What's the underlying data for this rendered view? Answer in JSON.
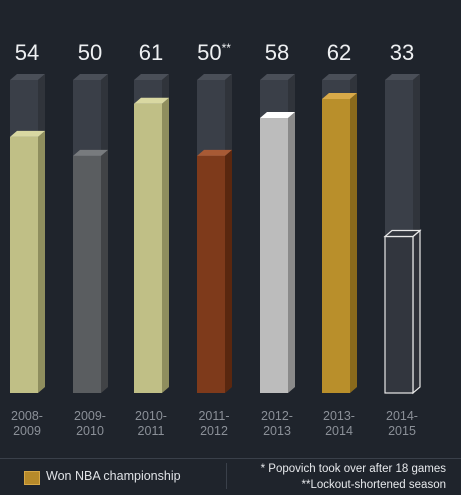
{
  "chart_data": {
    "type": "bar",
    "categories": [
      "2008-\n2009",
      "2009-\n2010",
      "2010-\n2011",
      "2011-\n2012",
      "2012-\n2013",
      "2013-\n2014",
      "2014-\n2015"
    ],
    "value_labels": [
      "54",
      "50",
      "61",
      "50**",
      "58",
      "62",
      "33"
    ],
    "values": [
      54,
      50,
      61,
      50,
      58,
      62,
      33
    ],
    "ylim": [
      0,
      66
    ],
    "grid": false,
    "colors": {
      "background": "#1f242c",
      "empty_column": "#3a3f48",
      "bars": [
        "#c0bf86",
        "#5a5d60",
        "#c0bf86",
        "#7e3a1b",
        "#bcbcbc",
        "#b98f2b",
        "#2d3138"
      ],
      "bar_tops": [
        "#d9d8a2",
        "#787b7e",
        "#d9d8a2",
        "#a85a35",
        "#ffffff",
        "#d9aa49",
        "#2d3138"
      ],
      "bar_sides": [
        "#8f8e5e",
        "#414346",
        "#8f8e5e",
        "#5a270f",
        "#8a8a8a",
        "#8a6a1c",
        "#2d3138"
      ]
    },
    "outline_bar_index": 6
  },
  "legend": {
    "championship_label": "Won NBA championship",
    "note1": "* Popovich took over after 18 games",
    "note2": "**Lockout-shortened season"
  }
}
